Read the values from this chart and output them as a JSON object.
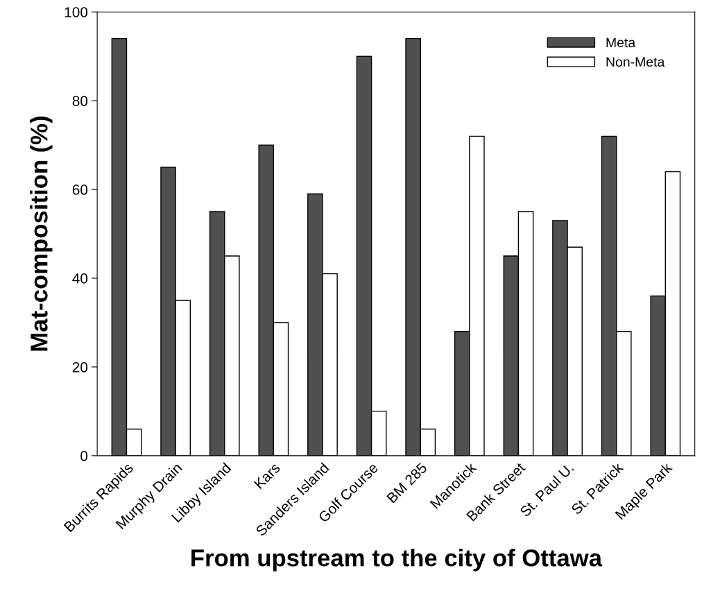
{
  "chart_data": {
    "type": "bar",
    "xlabel": "From upstream to the city of Ottawa",
    "ylabel": "Mat-composition (%)",
    "categories": [
      "Burrits Rapids",
      "Murphy Drain",
      "Libby Island",
      "Kars",
      "Sanders Island",
      "Golf Course",
      "BM 285",
      "Manotick",
      "Bank Street",
      "St. Paul U.",
      "St. Patrick",
      "Maple Park"
    ],
    "series": [
      {
        "name": "Meta",
        "color": "#505050",
        "values": [
          94,
          65,
          55,
          70,
          59,
          90,
          94,
          28,
          45,
          53,
          72,
          36
        ]
      },
      {
        "name": "Non-Meta",
        "color": "#ffffff",
        "values": [
          6,
          35,
          45,
          30,
          41,
          10,
          6,
          72,
          55,
          47,
          28,
          64
        ]
      }
    ],
    "ylim": [
      0,
      100
    ],
    "yticks": [
      0,
      20,
      40,
      60,
      80,
      100
    ],
    "grid": false,
    "legend": "top right"
  }
}
